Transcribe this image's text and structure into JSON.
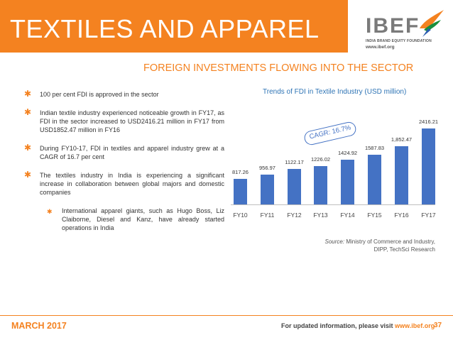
{
  "header": {
    "title": "TEXTILES AND APPAREL",
    "logo": {
      "word": "IBEF",
      "tagline": "INDIA BRAND EQUITY FOUNDATION",
      "url": "www.ibef.org"
    }
  },
  "section_title": "FOREIGN INVESTMENTS FLOWING INTO THE SECTOR",
  "bullets": [
    {
      "text": "100 per cent FDI is approved in the sector"
    },
    {
      "text": "Indian textile industry experienced noticeable growth in FY17, as FDI in the sector increased to USD2416.21 million in FY17 from USD1852.47 million in FY16"
    },
    {
      "text": "During FY10-17, FDI in textiles and apparel industry grew at a CAGR of 16.7 per cent"
    },
    {
      "text": "The textiles industry in India is experiencing a significant increase in collaboration between global majors and domestic companies"
    }
  ],
  "sub_bullet": {
    "text": "International apparel giants, such as Hugo Boss, Liz Claiborne, Diesel and Kanz, have already started operations in India"
  },
  "chart_data": {
    "type": "bar",
    "title": "Trends of FDI in Textile Industry (USD million)",
    "categories": [
      "FY10",
      "FY11",
      "FY12",
      "FY13",
      "FY14",
      "FY15",
      "FY16",
      "FY17"
    ],
    "values": [
      817.26,
      956.97,
      1122.17,
      1226.02,
      1424.92,
      1587.83,
      1852.47,
      2416.21
    ],
    "value_labels": [
      "817.26",
      "956.97",
      "1122.17",
      "1226.02",
      "1424.92",
      "1587.83",
      "1,852.47",
      "2416.21"
    ],
    "ylim": [
      0,
      2416.21
    ],
    "annotation": "CAGR: 16.7%",
    "color": "#4472c4"
  },
  "source": {
    "label": "Source:",
    "text": "Ministry of Commerce and Industry,",
    "text2": "DIPP, TechSci Research"
  },
  "footer": {
    "date": "MARCH 2017",
    "info": "For updated information, please visit",
    "url": "www.ibef.org",
    "page": "37"
  },
  "colors": {
    "accent": "#f48220",
    "bar": "#4472c4",
    "chart_title": "#2e74b5"
  }
}
